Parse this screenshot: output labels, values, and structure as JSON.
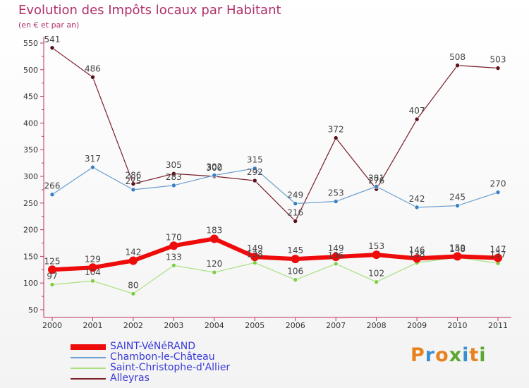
{
  "header": {
    "title": "Evolution des Impôts locaux par Habitant",
    "subtitle": "(en € et par an)"
  },
  "logo": {
    "text": "Proxiti",
    "colors": [
      "#e8821e",
      "#3a8fd0",
      "#e8821e",
      "#5aa832",
      "#3a8fd0",
      "#e8821e",
      "#5aa832"
    ]
  },
  "chart_data": {
    "type": "line",
    "categories": [
      "2000",
      "2001",
      "2002",
      "2003",
      "2004",
      "2005",
      "2006",
      "2007",
      "2008",
      "2009",
      "2010",
      "2011"
    ],
    "ylim": [
      50,
      550
    ],
    "yticks": [
      50,
      100,
      150,
      200,
      250,
      300,
      350,
      400,
      450,
      500,
      550
    ],
    "grid": false,
    "legend_position": "bottom-left",
    "series": [
      {
        "name": "Alleyras",
        "color": "#7a1e2a",
        "line_width": 1.2,
        "marker_color": "#5a1018",
        "values": [
          541,
          486,
          286,
          305,
          300,
          292,
          216,
          372,
          276,
          407,
          508,
          503
        ]
      },
      {
        "name": "Chambon-le-Château",
        "color": "#6a9ed0",
        "line_width": 1.2,
        "marker_color": "#3a7fc0",
        "values": [
          266,
          317,
          275,
          283,
          302,
          315,
          249,
          253,
          281,
          242,
          245,
          270
        ]
      },
      {
        "name": "Saint-Christophe-d'Allier",
        "color": "#a8e080",
        "line_width": 1.2,
        "marker_color": "#80cc44",
        "values": [
          97,
          104,
          80,
          133,
          120,
          138,
          106,
          136,
          102,
          138,
          148,
          137
        ]
      },
      {
        "name": "SAINT-VéNéRAND",
        "color": "#ee0b0b",
        "line_width": 6,
        "marker_color": "#ee0b0b",
        "values": [
          125,
          129,
          142,
          170,
          183,
          149,
          145,
          149,
          153,
          146,
          150,
          147
        ]
      }
    ],
    "legend_order": [
      "SAINT-VéNéRAND",
      "Chambon-le-Château",
      "Saint-Christophe-d'Allier",
      "Alleyras"
    ]
  }
}
